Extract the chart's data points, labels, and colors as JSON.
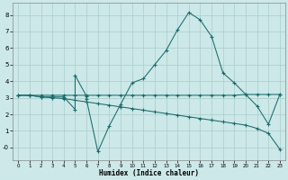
{
  "xlabel": "Humidex (Indice chaleur)",
  "bg_color": "#cce8e8",
  "grid_color": "#aacccc",
  "line_color": "#1a6b6b",
  "xlim": [
    -0.5,
    23.5
  ],
  "ylim": [
    -0.75,
    8.75
  ],
  "xticks": [
    0,
    1,
    2,
    3,
    4,
    5,
    6,
    7,
    8,
    9,
    10,
    11,
    12,
    13,
    14,
    15,
    16,
    17,
    18,
    19,
    20,
    21,
    22,
    23
  ],
  "yticks": [
    0,
    1,
    2,
    3,
    4,
    5,
    6,
    7,
    8
  ],
  "ytick_labels": [
    "-0",
    "1",
    "2",
    "3",
    "4",
    "5",
    "6",
    "7",
    "8"
  ],
  "line1_x": [
    0,
    1,
    2,
    3,
    4,
    5,
    6,
    7,
    8,
    9,
    10,
    11,
    12,
    13,
    14,
    15,
    16,
    17,
    18,
    19,
    20,
    21,
    22,
    23
  ],
  "line1_y": [
    3.15,
    3.15,
    3.15,
    3.15,
    3.15,
    3.15,
    3.15,
    3.15,
    3.15,
    3.15,
    3.15,
    3.15,
    3.15,
    3.15,
    3.15,
    3.15,
    3.15,
    3.15,
    3.15,
    3.15,
    3.2,
    3.2,
    3.2,
    3.2
  ],
  "line2_x": [
    0,
    1,
    2,
    3,
    4,
    5,
    5,
    6,
    6,
    7,
    8,
    9,
    10,
    11,
    12,
    13,
    14,
    15,
    16,
    17,
    18,
    19,
    20,
    21,
    22,
    23
  ],
  "line2_y": [
    3.15,
    3.15,
    3.05,
    3.05,
    3.05,
    2.3,
    4.35,
    3.1,
    2.9,
    -0.25,
    1.3,
    2.6,
    3.9,
    4.15,
    5.0,
    5.85,
    7.1,
    8.15,
    7.7,
    6.7,
    4.5,
    3.9,
    3.2,
    2.5,
    1.4,
    3.2
  ],
  "line3_x": [
    0,
    1,
    2,
    3,
    4,
    5,
    6,
    7,
    8,
    9,
    10,
    11,
    12,
    13,
    14,
    15,
    16,
    17,
    18,
    19,
    20,
    21,
    22,
    23
  ],
  "line3_y": [
    3.15,
    3.15,
    3.05,
    3.0,
    2.95,
    2.85,
    2.75,
    2.65,
    2.55,
    2.45,
    2.35,
    2.25,
    2.15,
    2.05,
    1.95,
    1.85,
    1.75,
    1.65,
    1.55,
    1.45,
    1.35,
    1.15,
    0.85,
    -0.1
  ]
}
